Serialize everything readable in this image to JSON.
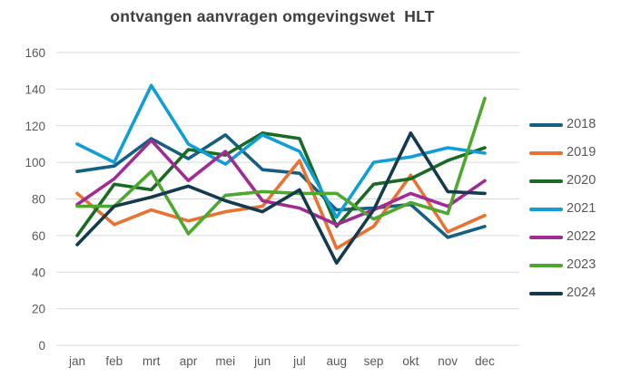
{
  "title": "ontvangen aanvragen omgevingswet  HLT",
  "colors": {
    "title_text": "#3f3f3f",
    "axis_text": "#595959",
    "gridline": "#d9d9d9",
    "background": "#ffffff"
  },
  "chart_data": {
    "type": "line",
    "title": "ontvangen aanvragen omgevingswet  HLT",
    "xlabel": "",
    "ylabel": "",
    "ylim": [
      0,
      160
    ],
    "yticks": [
      0,
      20,
      40,
      60,
      80,
      100,
      120,
      140,
      160
    ],
    "grid": true,
    "legend_position": "right",
    "categories": [
      "jan",
      "feb",
      "mrt",
      "apr",
      "mei",
      "jun",
      "jul",
      "aug",
      "sep",
      "okt",
      "nov",
      "dec"
    ],
    "series": [
      {
        "name": "2018",
        "color": "#156082",
        "values": [
          95,
          98,
          113,
          102,
          115,
          96,
          94,
          74,
          75,
          77,
          59,
          65
        ]
      },
      {
        "name": "2019",
        "color": "#e97132",
        "values": [
          83,
          66,
          74,
          68,
          73,
          76,
          101,
          53,
          65,
          93,
          62,
          71
        ]
      },
      {
        "name": "2020",
        "color": "#196b24",
        "values": [
          60,
          88,
          85,
          107,
          104,
          116,
          113,
          65,
          88,
          91,
          101,
          108
        ]
      },
      {
        "name": "2021",
        "color": "#0f9ed5",
        "values": [
          110,
          100,
          142,
          110,
          99,
          115,
          106,
          70,
          100,
          103,
          108,
          105
        ]
      },
      {
        "name": "2022",
        "color": "#a02b93",
        "values": [
          77,
          91,
          112,
          90,
          106,
          79,
          75,
          66,
          74,
          83,
          76,
          90
        ]
      },
      {
        "name": "2023",
        "color": "#4ea72e",
        "values": [
          76,
          76,
          95,
          61,
          82,
          84,
          83,
          83,
          69,
          78,
          72,
          135
        ]
      },
      {
        "name": "2024",
        "color": "#143a4e",
        "values": [
          55,
          76,
          81,
          87,
          79,
          73,
          85,
          45,
          74,
          116,
          84,
          83
        ]
      }
    ]
  }
}
